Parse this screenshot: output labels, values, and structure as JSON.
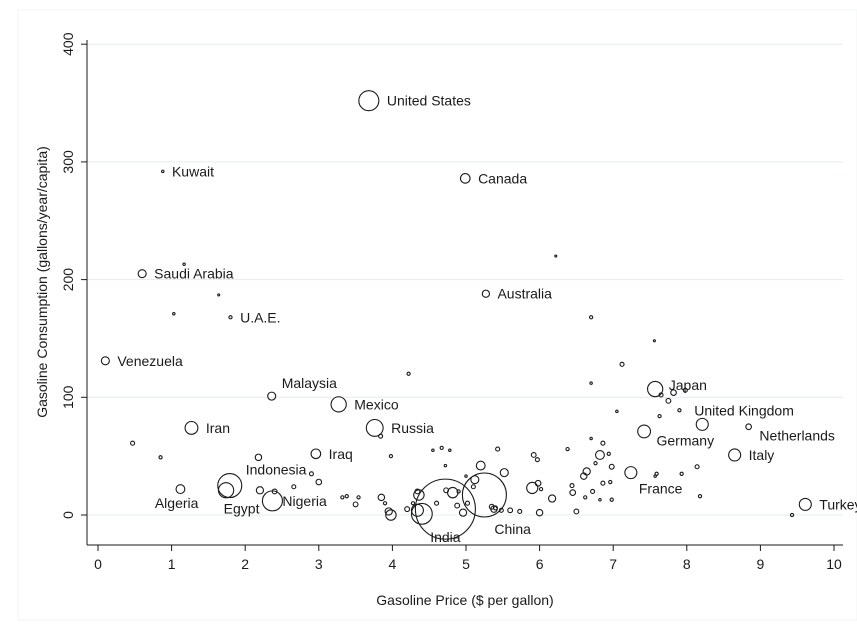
{
  "chart_data": {
    "type": "scatter",
    "title": "",
    "xlabel": "Gasoline Price ($ per gallon)",
    "ylabel": "Gasoline Consumption (gallons/year/capita)",
    "xlim": [
      -0.1,
      10.2
    ],
    "ylim": [
      -30,
      410
    ],
    "x_ticks": [
      0,
      1,
      2,
      3,
      4,
      5,
      6,
      7,
      8,
      9,
      10
    ],
    "y_ticks": [
      0,
      100,
      200,
      300,
      400
    ],
    "grid": "horizontal",
    "legend": "none",
    "bubble_size_meaning": "not stated in figure",
    "colors": {
      "marker": "#1a1a1a",
      "grid": "#e3ecef",
      "axis": "#1a1a1a"
    },
    "labeled_points": [
      {
        "label": "United States",
        "x": 3.68,
        "y": 352,
        "size": 2.5
      },
      {
        "label": "Kuwait",
        "x": 0.88,
        "y": 292,
        "size": 0.3
      },
      {
        "label": "Canada",
        "x": 4.99,
        "y": 286,
        "size": 1.2
      },
      {
        "label": "Saudi Arabia",
        "x": 0.6,
        "y": 205,
        "size": 1.0
      },
      {
        "label": "Australia",
        "x": 5.27,
        "y": 188,
        "size": 0.9
      },
      {
        "label": "U.A.E.",
        "x": 1.8,
        "y": 168,
        "size": 0.4
      },
      {
        "label": "Venezuela",
        "x": 0.1,
        "y": 131,
        "size": 1.0
      },
      {
        "label": "Malaysia",
        "x": 2.36,
        "y": 101,
        "size": 1.0
      },
      {
        "label": "Mexico",
        "x": 3.27,
        "y": 94,
        "size": 1.9
      },
      {
        "label": "Japan",
        "x": 7.57,
        "y": 107,
        "size": 1.9
      },
      {
        "label": "Iran",
        "x": 1.27,
        "y": 74,
        "size": 1.6
      },
      {
        "label": "Russia",
        "x": 3.76,
        "y": 74,
        "size": 2.1
      },
      {
        "label": "United Kingdom",
        "x": 8.21,
        "y": 77,
        "size": 1.5
      },
      {
        "label": "Netherlands",
        "x": 8.84,
        "y": 75,
        "size": 0.7
      },
      {
        "label": "Germany",
        "x": 7.42,
        "y": 71,
        "size": 1.6
      },
      {
        "label": "Iraq",
        "x": 2.96,
        "y": 52,
        "size": 1.2
      },
      {
        "label": "Italy",
        "x": 8.65,
        "y": 51,
        "size": 1.5
      },
      {
        "label": "Indonesia",
        "x": 1.79,
        "y": 25,
        "size": 3.0
      },
      {
        "label": "France",
        "x": 7.24,
        "y": 36,
        "size": 1.5
      },
      {
        "label": "Algeria",
        "x": 1.12,
        "y": 22,
        "size": 1.1
      },
      {
        "label": "Egypt",
        "x": 1.74,
        "y": 21,
        "size": 1.9
      },
      {
        "label": "Nigeria",
        "x": 2.37,
        "y": 12,
        "size": 2.5
      },
      {
        "label": "Turkey",
        "x": 9.61,
        "y": 9,
        "size": 1.5
      },
      {
        "label": "India",
        "x": 4.72,
        "y": 5,
        "size": 7.5
      },
      {
        "label": "China",
        "x": 5.25,
        "y": 17,
        "size": 5.5
      }
    ],
    "points": [
      {
        "x": 1.17,
        "y": 213,
        "size": 0.3
      },
      {
        "x": 1.64,
        "y": 187,
        "size": 0.2
      },
      {
        "x": 1.03,
        "y": 171,
        "size": 0.3
      },
      {
        "x": 6.22,
        "y": 220,
        "size": 0.2
      },
      {
        "x": 6.7,
        "y": 168,
        "size": 0.4
      },
      {
        "x": 7.56,
        "y": 148,
        "size": 0.2
      },
      {
        "x": 7.12,
        "y": 128,
        "size": 0.5
      },
      {
        "x": 4.22,
        "y": 120,
        "size": 0.4
      },
      {
        "x": 6.7,
        "y": 112,
        "size": 0.3
      },
      {
        "x": 7.82,
        "y": 104,
        "size": 0.7
      },
      {
        "x": 7.98,
        "y": 106,
        "size": 0.5
      },
      {
        "x": 7.65,
        "y": 102,
        "size": 0.5
      },
      {
        "x": 7.05,
        "y": 88,
        "size": 0.3
      },
      {
        "x": 7.9,
        "y": 89,
        "size": 0.4
      },
      {
        "x": 7.63,
        "y": 84,
        "size": 0.4
      },
      {
        "x": 3.84,
        "y": 67,
        "size": 0.5
      },
      {
        "x": 0.47,
        "y": 61,
        "size": 0.5
      },
      {
        "x": 0.85,
        "y": 49,
        "size": 0.4
      },
      {
        "x": 2.18,
        "y": 49,
        "size": 0.8
      },
      {
        "x": 4.67,
        "y": 57,
        "size": 0.4
      },
      {
        "x": 4.55,
        "y": 55,
        "size": 0.3
      },
      {
        "x": 4.78,
        "y": 55,
        "size": 0.3
      },
      {
        "x": 3.98,
        "y": 50,
        "size": 0.4
      },
      {
        "x": 4.72,
        "y": 42,
        "size": 0.3
      },
      {
        "x": 5.43,
        "y": 56,
        "size": 0.5
      },
      {
        "x": 5.92,
        "y": 51,
        "size": 0.6
      },
      {
        "x": 5.97,
        "y": 47,
        "size": 0.5
      },
      {
        "x": 6.38,
        "y": 56,
        "size": 0.4
      },
      {
        "x": 6.7,
        "y": 65,
        "size": 0.3
      },
      {
        "x": 6.86,
        "y": 61,
        "size": 0.5
      },
      {
        "x": 6.94,
        "y": 52,
        "size": 0.4
      },
      {
        "x": 6.82,
        "y": 51,
        "size": 1.1
      },
      {
        "x": 6.76,
        "y": 44,
        "size": 0.4
      },
      {
        "x": 6.98,
        "y": 41,
        "size": 0.6
      },
      {
        "x": 6.64,
        "y": 37,
        "size": 0.9
      },
      {
        "x": 6.6,
        "y": 33,
        "size": 0.8
      },
      {
        "x": 6.44,
        "y": 25,
        "size": 0.5
      },
      {
        "x": 6.72,
        "y": 20,
        "size": 0.5
      },
      {
        "x": 6.86,
        "y": 27,
        "size": 0.5
      },
      {
        "x": 6.96,
        "y": 28,
        "size": 0.4
      },
      {
        "x": 6.98,
        "y": 13,
        "size": 0.4
      },
      {
        "x": 6.82,
        "y": 13,
        "size": 0.3
      },
      {
        "x": 6.5,
        "y": 3,
        "size": 0.6
      },
      {
        "x": 6.45,
        "y": 19,
        "size": 0.7
      },
      {
        "x": 6.62,
        "y": 15,
        "size": 0.4
      },
      {
        "x": 5.98,
        "y": 27,
        "size": 0.7
      },
      {
        "x": 6.02,
        "y": 22,
        "size": 0.4
      },
      {
        "x": 5.9,
        "y": 23,
        "size": 1.4
      },
      {
        "x": 6.17,
        "y": 14,
        "size": 0.9
      },
      {
        "x": 6.0,
        "y": 2,
        "size": 0.8
      },
      {
        "x": 5.73,
        "y": 3,
        "size": 0.5
      },
      {
        "x": 5.48,
        "y": 4,
        "size": 0.5
      },
      {
        "x": 5.6,
        "y": 4,
        "size": 0.6
      },
      {
        "x": 5.38,
        "y": 5,
        "size": 0.8
      },
      {
        "x": 5.12,
        "y": 30,
        "size": 1.0
      },
      {
        "x": 5.2,
        "y": 42,
        "size": 1.1
      },
      {
        "x": 5.52,
        "y": 36,
        "size": 1.0
      },
      {
        "x": 5.1,
        "y": 24,
        "size": 0.5
      },
      {
        "x": 4.9,
        "y": 20,
        "size": 0.4
      },
      {
        "x": 4.82,
        "y": 19,
        "size": 1.3
      },
      {
        "x": 4.96,
        "y": 2,
        "size": 0.9
      },
      {
        "x": 4.36,
        "y": 17,
        "size": 1.3
      },
      {
        "x": 4.34,
        "y": 20,
        "size": 0.6
      },
      {
        "x": 4.28,
        "y": 10,
        "size": 0.4
      },
      {
        "x": 4.2,
        "y": 5,
        "size": 0.6
      },
      {
        "x": 4.34,
        "y": 4,
        "size": 1.5
      },
      {
        "x": 4.4,
        "y": 1,
        "size": 2.6
      },
      {
        "x": 3.95,
        "y": 3,
        "size": 0.9
      },
      {
        "x": 3.98,
        "y": 0,
        "size": 1.3
      },
      {
        "x": 3.85,
        "y": 15,
        "size": 0.8
      },
      {
        "x": 3.9,
        "y": 10,
        "size": 0.4
      },
      {
        "x": 3.5,
        "y": 9,
        "size": 0.6
      },
      {
        "x": 3.54,
        "y": 15,
        "size": 0.4
      },
      {
        "x": 3.32,
        "y": 15,
        "size": 0.4
      },
      {
        "x": 3.38,
        "y": 16,
        "size": 0.4
      },
      {
        "x": 3.0,
        "y": 28,
        "size": 0.7
      },
      {
        "x": 2.9,
        "y": 35,
        "size": 0.5
      },
      {
        "x": 2.66,
        "y": 24,
        "size": 0.5
      },
      {
        "x": 2.2,
        "y": 21,
        "size": 0.9
      },
      {
        "x": 2.4,
        "y": 20,
        "size": 0.6
      },
      {
        "x": 4.6,
        "y": 10,
        "size": 0.5
      },
      {
        "x": 4.73,
        "y": 21,
        "size": 0.6
      },
      {
        "x": 5.02,
        "y": 10,
        "size": 0.5
      },
      {
        "x": 4.88,
        "y": 8,
        "size": 0.6
      },
      {
        "x": 5.0,
        "y": 33,
        "size": 0.3
      },
      {
        "x": 5.35,
        "y": 7,
        "size": 0.6
      },
      {
        "x": 5.4,
        "y": 6,
        "size": 0.5
      },
      {
        "x": 7.75,
        "y": 97,
        "size": 0.6
      },
      {
        "x": 7.59,
        "y": 35,
        "size": 0.4
      },
      {
        "x": 7.57,
        "y": 33,
        "size": 0.3
      },
      {
        "x": 7.93,
        "y": 35,
        "size": 0.4
      },
      {
        "x": 8.14,
        "y": 41,
        "size": 0.5
      },
      {
        "x": 8.18,
        "y": 16,
        "size": 0.4
      },
      {
        "x": 9.43,
        "y": 0,
        "size": 0.4
      }
    ]
  }
}
